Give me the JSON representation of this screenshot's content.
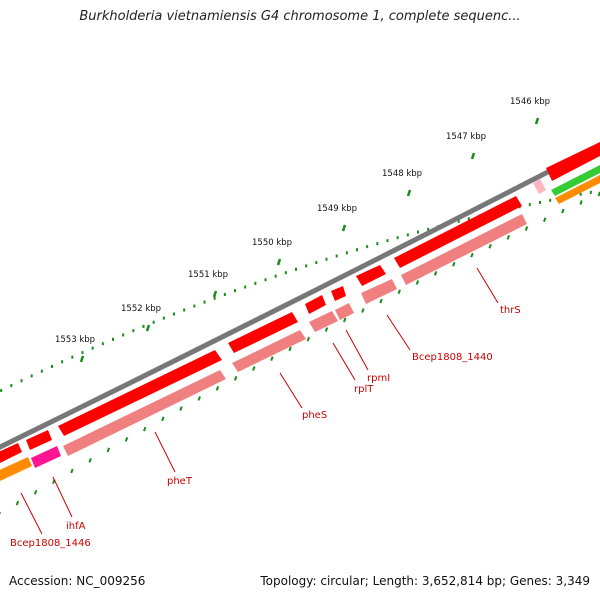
{
  "title": "Burkholderia vietnamiensis G4 chromosome 1, complete sequenc...",
  "footer": {
    "accession": "Accession: NC_009256",
    "summary": "Topology: circular; Length: 3,652,814 bp; Genes: 3,349"
  },
  "colors": {
    "backbone": "#777777",
    "cds_strong": "#ff0000",
    "cds_light": "#f08080",
    "gene_pink": "#ff1493",
    "gene_orange": "#ff8c00",
    "gene_green": "#33cc33",
    "ticks": "#1a8c1a",
    "label": "#cc0000"
  },
  "scale_ticks": [
    "1546 kbp",
    "1547 kbp",
    "1548 kbp",
    "1549 kbp",
    "1550 kbp",
    "1551 kbp",
    "1552 kbp",
    "1553 kbp"
  ],
  "gene_labels": [
    "thrS",
    "Bcep1808_1440",
    "rpmI",
    "rplT",
    "pheS",
    "pheT",
    "ihfA",
    "Bcep1808_1446"
  ]
}
